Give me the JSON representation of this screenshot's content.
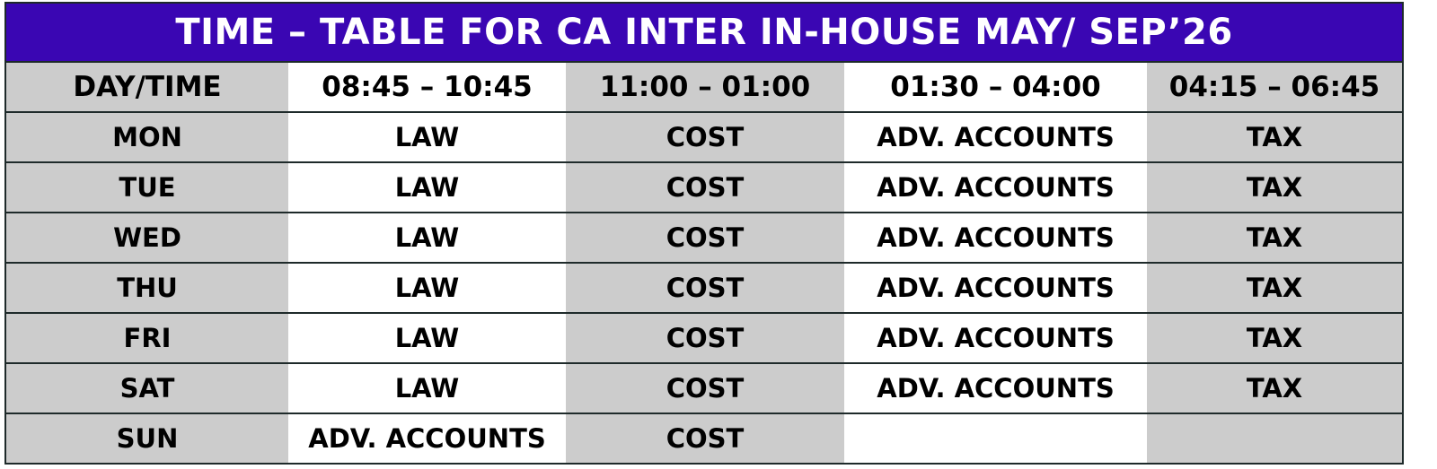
{
  "title": "TIME – TABLE FOR CA INTER IN-HOUSE MAY/ SEP’26",
  "header": [
    "DAY/TIME",
    "08:45 – 10:45",
    "11:00 – 01:00",
    "01:30 – 04:00",
    "04:15 – 06:45"
  ],
  "rows": [
    {
      "day": "MON",
      "slots": [
        "LAW",
        "COST",
        "ADV. ACCOUNTS",
        "TAX"
      ]
    },
    {
      "day": "TUE",
      "slots": [
        "LAW",
        "COST",
        "ADV. ACCOUNTS",
        "TAX"
      ]
    },
    {
      "day": "WED",
      "slots": [
        "LAW",
        "COST",
        "ADV. ACCOUNTS",
        "TAX"
      ]
    },
    {
      "day": "THU",
      "slots": [
        "LAW",
        "COST",
        "ADV. ACCOUNTS",
        "TAX"
      ]
    },
    {
      "day": "FRI",
      "slots": [
        "LAW",
        "COST",
        "ADV. ACCOUNTS",
        "TAX"
      ]
    },
    {
      "day": "SAT",
      "slots": [
        "LAW",
        "COST",
        "ADV. ACCOUNTS",
        "TAX"
      ]
    },
    {
      "day": "SUN",
      "slots": [
        "ADV. ACCOUNTS",
        "COST",
        "",
        ""
      ]
    }
  ],
  "colors": {
    "title_bg": "#3a06b3",
    "shaded": "#cccccc"
  }
}
